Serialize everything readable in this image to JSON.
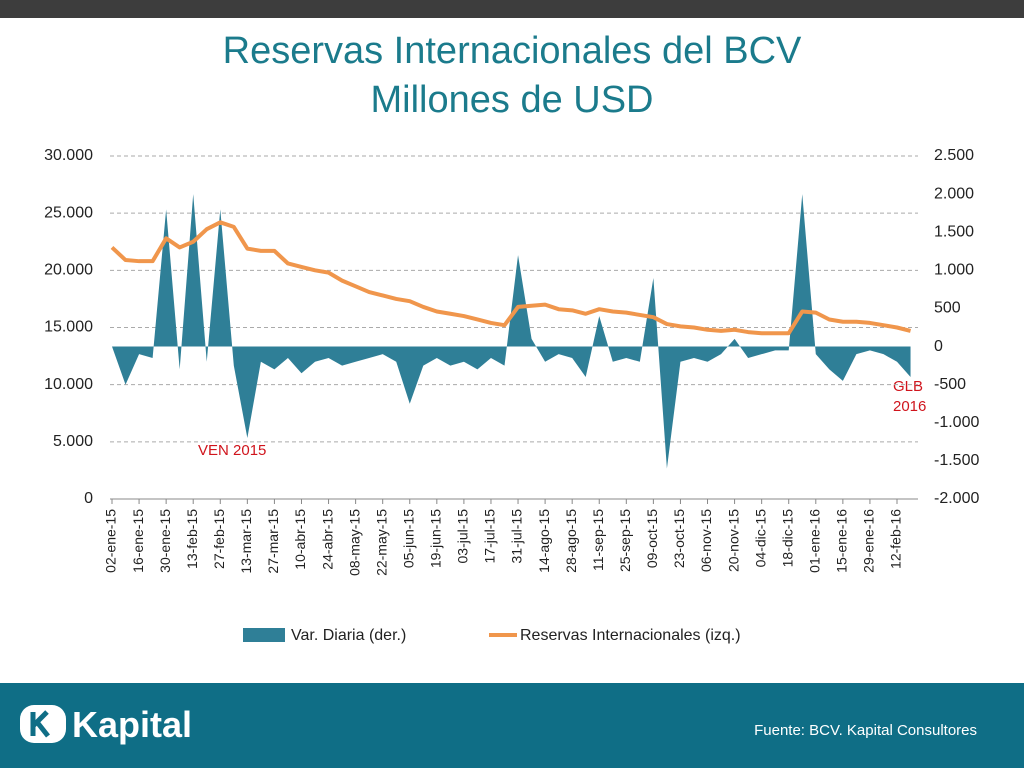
{
  "chart_data": {
    "type": "line",
    "title": [
      "Reservas Internacionales del BCV",
      "Millones de USD"
    ],
    "categories": [
      "02-ene-15",
      null,
      "16-ene-15",
      null,
      "30-ene-15",
      null,
      "13-feb-15",
      null,
      "27-feb-15",
      null,
      "13-mar-15",
      null,
      "27-mar-15",
      null,
      "10-abr-15",
      null,
      "24-abr-15",
      null,
      "08-may-15",
      null,
      "22-may-15",
      null,
      "05-jun-15",
      null,
      "19-jun-15",
      null,
      "03-jul-15",
      null,
      "17-jul-15",
      null,
      "31-jul-15",
      null,
      "14-ago-15",
      null,
      "28-ago-15",
      null,
      "11-sep-15",
      null,
      "25-sep-15",
      null,
      "09-oct-15",
      null,
      "23-oct-15",
      null,
      "06-nov-15",
      null,
      "20-nov-15",
      null,
      "04-dic-15",
      null,
      "18-dic-15",
      null,
      "01-ene-16",
      null,
      "15-ene-16",
      null,
      "29-ene-16",
      null,
      "12-feb-16",
      null
    ],
    "series": [
      {
        "name": "Var. Diaria (der.)",
        "type": "area",
        "axis": "y2",
        "color": "#2f7f97",
        "values": [
          0,
          -500,
          -100,
          -150,
          1800,
          -300,
          2000,
          -200,
          1800,
          -250,
          -1200,
          -200,
          -300,
          -150,
          -350,
          -200,
          -150,
          -250,
          -200,
          -150,
          -100,
          -200,
          -750,
          -250,
          -150,
          -250,
          -200,
          -300,
          -150,
          -250,
          1200,
          100,
          -200,
          -100,
          -150,
          -400,
          400,
          -200,
          -150,
          -200,
          900,
          -1600,
          -200,
          -150,
          -200,
          -100,
          100,
          -150,
          -100,
          -50,
          -50,
          2000,
          -100,
          -300,
          -450,
          -100,
          -50,
          -100,
          -200,
          -400
        ]
      },
      {
        "name": "Reservas Internacionales (izq.)",
        "type": "line",
        "axis": "y",
        "color": "#f0964c",
        "values": [
          22000,
          20900,
          20800,
          20800,
          22800,
          22000,
          22500,
          23600,
          24200,
          23800,
          21900,
          21700,
          21700,
          20600,
          20300,
          20000,
          19800,
          19100,
          18600,
          18100,
          17800,
          17500,
          17300,
          16800,
          16400,
          16200,
          16000,
          15700,
          15400,
          15200,
          16800,
          16900,
          17000,
          16600,
          16500,
          16200,
          16600,
          16400,
          16300,
          16100,
          15900,
          15300,
          15100,
          15000,
          14800,
          14700,
          14800,
          14600,
          14500,
          14500,
          14500,
          16400,
          16300,
          15700,
          15500,
          15500,
          15400,
          15200,
          15000,
          14700
        ]
      }
    ],
    "ylim": [
      0,
      30000
    ],
    "yticks": [
      0,
      {
        "value": 5000,
        "label": "5.000"
      },
      {
        "value": 10000,
        "label": "10.000"
      },
      {
        "value": 15000,
        "label": "15.000"
      },
      {
        "value": 20000,
        "label": "20.000"
      },
      {
        "value": 25000,
        "label": "25.000"
      },
      {
        "value": 30000,
        "label": "30.000"
      }
    ],
    "y2lim": [
      -2000,
      2500
    ],
    "y2ticks": [
      {
        "value": -2000,
        "label": "-2.000"
      },
      {
        "value": -1500,
        "label": "-1.500"
      },
      {
        "value": -1000,
        "label": "-1.000"
      },
      -500,
      0,
      500,
      {
        "value": 1000,
        "label": "1.000"
      },
      {
        "value": 1500,
        "label": "1.500"
      },
      {
        "value": 2000,
        "label": "2.000"
      },
      {
        "value": 2500,
        "label": "2.500"
      }
    ],
    "grid": true,
    "legend": "bottom",
    "annotations": [
      "VEN 2015",
      [
        "GLB",
        "2016"
      ]
    ]
  },
  "footer": {
    "brand": "Kapital",
    "source": "Fuente: BCV. Kapital Consultores"
  }
}
